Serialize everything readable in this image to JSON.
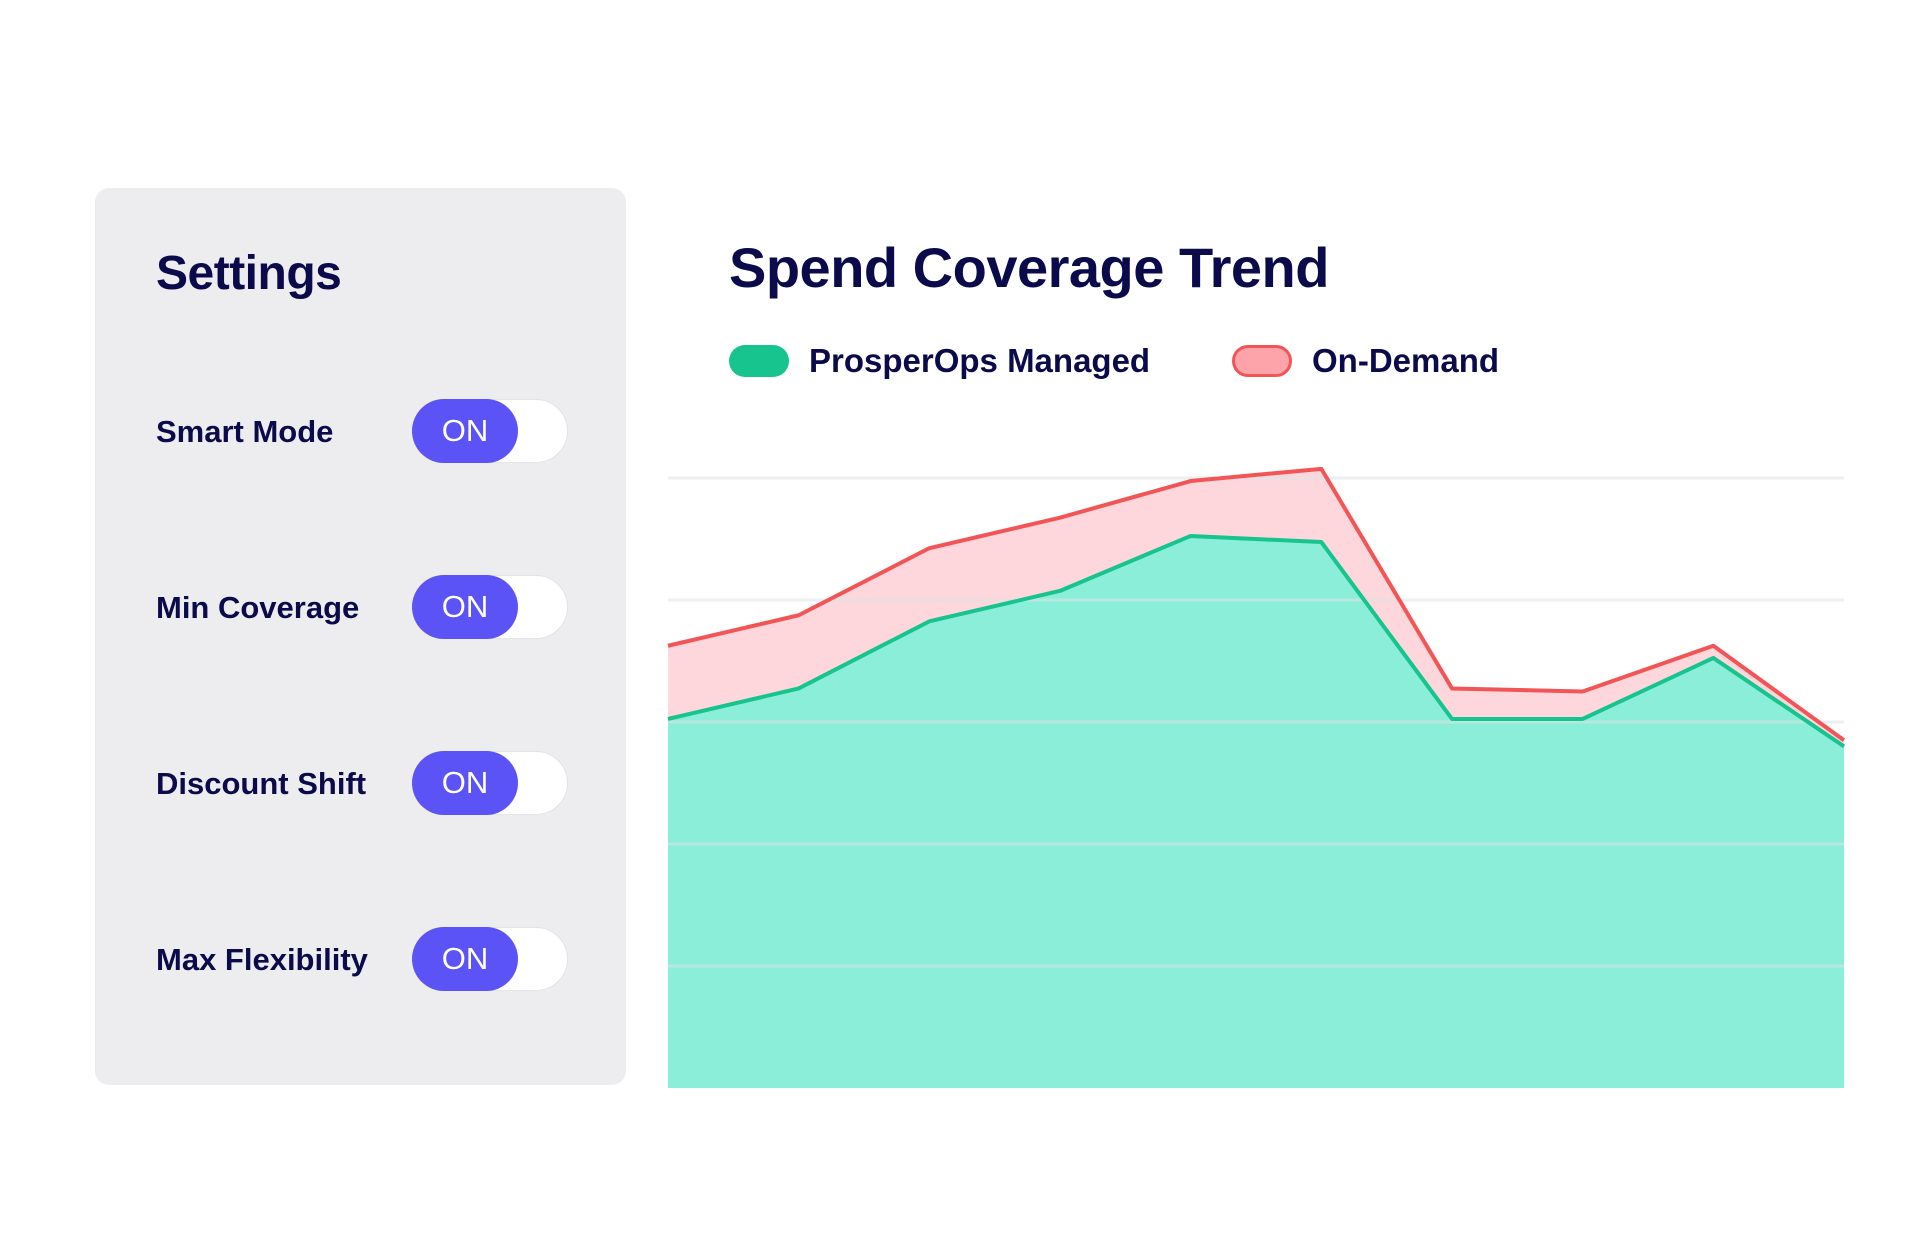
{
  "settings": {
    "title": "Settings",
    "items": [
      {
        "label": "Smart Mode",
        "state": "ON"
      },
      {
        "label": "Min Coverage",
        "state": "ON"
      },
      {
        "label": "Discount Shift",
        "state": "ON"
      },
      {
        "label": "Max Flexibility",
        "state": "ON"
      }
    ]
  },
  "colors": {
    "toggle_on": "#5b53f6",
    "managed_line": "#17c48d",
    "managed_fill": "#8aeed8",
    "ondemand_line": "#f25555",
    "ondemand_fill": "#fdd7dc"
  },
  "chart_data": {
    "type": "area",
    "title": "Spend Coverage Trend",
    "stacked": true,
    "grid": true,
    "legend_position": "top-left",
    "ylim": [
      0,
      100
    ],
    "x": [
      1,
      2,
      3,
      4,
      5,
      6,
      7,
      8,
      9,
      10
    ],
    "series": [
      {
        "name": "ProsperOps Managed",
        "values": [
          60.5,
          65.5,
          76.5,
          81.5,
          90.5,
          89.5,
          60.5,
          60.5,
          70.5,
          56
        ]
      },
      {
        "name": "On-Demand",
        "values": [
          12,
          12,
          12,
          12,
          9,
          12,
          5,
          4.5,
          2,
          1
        ]
      }
    ]
  }
}
